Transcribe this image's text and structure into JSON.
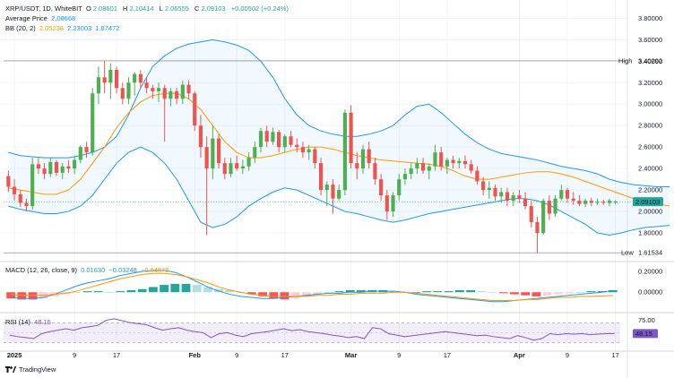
{
  "header": {
    "symbol_line": "XRP/USDT, 1D, WhiteBIT",
    "ohlc": {
      "o_label": "O",
      "o_value": "2.08601",
      "h_label": "H",
      "h_value": "2.10414",
      "l_label": "L",
      "l_value": "2.06555",
      "c_label": "C",
      "c_value": "2.09103",
      "change": "+0.00502 (+0.24%)"
    },
    "avg_price_label": "Average Price",
    "avg_price_value": "2.08668",
    "bb_label": "BB (20, 2)",
    "bb_basis": "2.05238",
    "bb_upper": "2.23003",
    "bb_lower": "1.87472",
    "macd_label": "MACD (12, 26, close, 9)",
    "macd_values": [
      "0.01630",
      "−0.03248",
      "−0.04878"
    ],
    "rsi_label": "RSI (14)",
    "rsi_value": "48.15"
  },
  "markers": {
    "high_label": "High",
    "high_value": "3.40292",
    "low_label": "Low",
    "low_value": "1.61534",
    "last_price": "2.09103",
    "rsi_last": "48.15"
  },
  "colors": {
    "up": "#26a69a",
    "up_fill": "#4caf50",
    "down": "#ef5350",
    "band": "#2196f3",
    "basis": "#ff9800",
    "macd_line": "#2196f3",
    "signal_line": "#ff9800",
    "rsi_line": "#7e57c2",
    "grid": "#f0f3fa"
  },
  "brand": {
    "name": "TradingView",
    "icon": "tradingview-logo-icon"
  },
  "chart_data": [
    {
      "type": "candlestick",
      "title": "XRP/USDT, 1D, WhiteBIT",
      "y_ticks": [
        "3.80000",
        "3.60000",
        "3.40000",
        "3.20000",
        "3.00000",
        "2.80000",
        "2.60000",
        "2.40000",
        "2.20000",
        "2.00000",
        "1.80000"
      ],
      "ylim": [
        1.55,
        3.92
      ],
      "x_ticks": [
        "2025",
        "9",
        "17",
        "Feb",
        "9",
        "17",
        "Mar",
        "9",
        "17",
        "Apr",
        "9",
        "17"
      ],
      "x_tick_index": [
        1,
        11,
        18,
        31,
        38,
        46,
        57,
        65,
        73,
        85,
        93,
        101
      ],
      "candles": [
        [
          2.33,
          2.38,
          2.18,
          2.23
        ],
        [
          2.23,
          2.3,
          2.1,
          2.16
        ],
        [
          2.16,
          2.2,
          2.04,
          2.08
        ],
        [
          2.08,
          2.12,
          2.0,
          2.05
        ],
        [
          2.05,
          2.5,
          2.02,
          2.44
        ],
        [
          2.44,
          2.5,
          2.35,
          2.4
        ],
        [
          2.4,
          2.45,
          2.3,
          2.35
        ],
        [
          2.35,
          2.5,
          2.32,
          2.46
        ],
        [
          2.46,
          2.48,
          2.33,
          2.36
        ],
        [
          2.36,
          2.45,
          2.3,
          2.42
        ],
        [
          2.42,
          2.48,
          2.36,
          2.4
        ],
        [
          2.4,
          2.52,
          2.35,
          2.48
        ],
        [
          2.48,
          2.62,
          2.45,
          2.6
        ],
        [
          2.6,
          2.65,
          2.5,
          2.55
        ],
        [
          2.55,
          3.15,
          2.52,
          3.1
        ],
        [
          3.1,
          3.35,
          3.0,
          3.25
        ],
        [
          3.25,
          3.4,
          3.1,
          3.2
        ],
        [
          3.2,
          3.38,
          3.05,
          3.32
        ],
        [
          3.32,
          3.35,
          3.1,
          3.15
        ],
        [
          3.15,
          3.2,
          3.0,
          3.05
        ],
        [
          3.05,
          3.25,
          3.0,
          3.2
        ],
        [
          3.2,
          3.3,
          3.08,
          3.28
        ],
        [
          3.28,
          3.32,
          3.15,
          3.2
        ],
        [
          3.2,
          3.25,
          3.1,
          3.15
        ],
        [
          3.15,
          3.18,
          3.05,
          3.12
        ],
        [
          3.12,
          3.2,
          3.02,
          3.15
        ],
        [
          3.15,
          3.18,
          2.65,
          3.05
        ],
        [
          3.05,
          3.15,
          2.98,
          3.12
        ],
        [
          3.12,
          3.15,
          3.0,
          3.05
        ],
        [
          3.05,
          3.22,
          3.0,
          3.18
        ],
        [
          3.18,
          3.22,
          3.05,
          3.1
        ],
        [
          3.1,
          3.12,
          2.75,
          2.8
        ],
        [
          2.8,
          2.9,
          2.5,
          2.6
        ],
        [
          2.6,
          2.7,
          1.78,
          2.4
        ],
        [
          2.4,
          2.8,
          2.3,
          2.68
        ],
        [
          2.68,
          2.72,
          2.4,
          2.45
        ],
        [
          2.45,
          2.5,
          2.3,
          2.35
        ],
        [
          2.35,
          2.5,
          2.32,
          2.45
        ],
        [
          2.45,
          2.52,
          2.38,
          2.4
        ],
        [
          2.4,
          2.48,
          2.35,
          2.42
        ],
        [
          2.42,
          2.55,
          2.38,
          2.5
        ],
        [
          2.5,
          2.65,
          2.45,
          2.6
        ],
        [
          2.6,
          2.78,
          2.55,
          2.75
        ],
        [
          2.75,
          2.8,
          2.6,
          2.65
        ],
        [
          2.65,
          2.78,
          2.62,
          2.74
        ],
        [
          2.74,
          2.76,
          2.55,
          2.6
        ],
        [
          2.6,
          2.72,
          2.55,
          2.7
        ],
        [
          2.7,
          2.75,
          2.6,
          2.62
        ],
        [
          2.62,
          2.68,
          2.55,
          2.6
        ],
        [
          2.6,
          2.65,
          2.5,
          2.55
        ],
        [
          2.55,
          2.62,
          2.48,
          2.58
        ],
        [
          2.58,
          2.6,
          2.4,
          2.45
        ],
        [
          2.45,
          2.5,
          2.15,
          2.2
        ],
        [
          2.2,
          2.28,
          2.05,
          2.25
        ],
        [
          2.25,
          2.3,
          1.98,
          2.12
        ],
        [
          2.12,
          2.25,
          2.1,
          2.2
        ],
        [
          2.2,
          2.95,
          2.15,
          2.92
        ],
        [
          2.92,
          2.99,
          2.4,
          2.45
        ],
        [
          2.45,
          2.55,
          2.3,
          2.4
        ],
        [
          2.4,
          2.62,
          2.35,
          2.58
        ],
        [
          2.58,
          2.65,
          2.4,
          2.45
        ],
        [
          2.45,
          2.5,
          2.25,
          2.3
        ],
        [
          2.3,
          2.35,
          2.1,
          2.15
        ],
        [
          2.15,
          2.2,
          1.92,
          2.0
        ],
        [
          2.0,
          2.18,
          1.95,
          2.15
        ],
        [
          2.15,
          2.35,
          2.1,
          2.3
        ],
        [
          2.3,
          2.4,
          2.25,
          2.35
        ],
        [
          2.35,
          2.45,
          2.3,
          2.4
        ],
        [
          2.4,
          2.5,
          2.35,
          2.45
        ],
        [
          2.45,
          2.5,
          2.35,
          2.38
        ],
        [
          2.38,
          2.45,
          2.3,
          2.42
        ],
        [
          2.42,
          2.62,
          2.38,
          2.55
        ],
        [
          2.55,
          2.6,
          2.38,
          2.42
        ],
        [
          2.42,
          2.5,
          2.35,
          2.48
        ],
        [
          2.48,
          2.52,
          2.4,
          2.45
        ],
        [
          2.45,
          2.5,
          2.4,
          2.47
        ],
        [
          2.47,
          2.52,
          2.4,
          2.44
        ],
        [
          2.44,
          2.48,
          2.35,
          2.38
        ],
        [
          2.38,
          2.42,
          2.25,
          2.28
        ],
        [
          2.28,
          2.32,
          2.15,
          2.2
        ],
        [
          2.2,
          2.28,
          2.12,
          2.22
        ],
        [
          2.22,
          2.25,
          2.1,
          2.14
        ],
        [
          2.14,
          2.22,
          2.08,
          2.18
        ],
        [
          2.18,
          2.22,
          2.05,
          2.1
        ],
        [
          2.1,
          2.18,
          2.05,
          2.15
        ],
        [
          2.15,
          2.2,
          2.08,
          2.12
        ],
        [
          2.12,
          2.18,
          2.02,
          2.05
        ],
        [
          2.05,
          2.1,
          1.85,
          1.9
        ],
        [
          1.9,
          1.95,
          1.61,
          1.8
        ],
        [
          1.8,
          2.12,
          1.78,
          2.1
        ],
        [
          2.1,
          2.15,
          1.92,
          1.98
        ],
        [
          1.98,
          2.15,
          1.95,
          2.12
        ],
        [
          2.12,
          2.25,
          2.1,
          2.2
        ],
        [
          2.2,
          2.22,
          2.08,
          2.12
        ],
        [
          2.12,
          2.18,
          2.06,
          2.1
        ],
        [
          2.1,
          2.15,
          2.05,
          2.07
        ],
        [
          2.07,
          2.12,
          2.04,
          2.1
        ],
        [
          2.1,
          2.13,
          2.05,
          2.08
        ],
        [
          2.08,
          2.12,
          2.06,
          2.09
        ],
        [
          2.09,
          2.11,
          2.06,
          2.08
        ],
        [
          2.08,
          2.12,
          2.05,
          2.1
        ],
        [
          2.086,
          2.104,
          2.066,
          2.091
        ]
      ],
      "series_upper_band": [
        2.55,
        2.52,
        2.51,
        2.5,
        2.5,
        2.5,
        2.52,
        2.55,
        2.6,
        2.7,
        2.9,
        3.15,
        3.35,
        3.45,
        3.52,
        3.56,
        3.58,
        3.6,
        3.58,
        3.55,
        3.5,
        3.4,
        3.25,
        3.05,
        2.9,
        2.8,
        2.75,
        2.72,
        2.7,
        2.7,
        2.72,
        2.75,
        2.8,
        2.9,
        2.98,
        3.0,
        2.92,
        2.82,
        2.72,
        2.64,
        2.58,
        2.54,
        2.52,
        2.5,
        2.48,
        2.45,
        2.42,
        2.4,
        2.38,
        2.35,
        2.3,
        2.27,
        2.25,
        2.24,
        2.23,
        2.23
      ],
      "series_basis": [
        2.22,
        2.2,
        2.18,
        2.16,
        2.16,
        2.2,
        2.3,
        2.45,
        2.6,
        2.78,
        2.92,
        3.02,
        3.08,
        3.1,
        3.1,
        3.05,
        2.95,
        2.8,
        2.65,
        2.55,
        2.5,
        2.5,
        2.52,
        2.55,
        2.58,
        2.6,
        2.6,
        2.58,
        2.55,
        2.52,
        2.5,
        2.48,
        2.47,
        2.46,
        2.45,
        2.44,
        2.42,
        2.38,
        2.33,
        2.3,
        2.3,
        2.32,
        2.34,
        2.36,
        2.37,
        2.37,
        2.35,
        2.32,
        2.28,
        2.24,
        2.2,
        2.16,
        2.12,
        2.09,
        2.07,
        2.05
      ],
      "series_lower_band": [
        2.05,
        2.02,
        2.0,
        1.98,
        1.98,
        2.0,
        2.05,
        2.15,
        2.3,
        2.45,
        2.55,
        2.6,
        2.55,
        2.45,
        2.3,
        2.1,
        1.9,
        1.85,
        1.88,
        1.95,
        2.05,
        2.12,
        2.18,
        2.22,
        2.2,
        2.15,
        2.1,
        2.05,
        2.0,
        1.98,
        1.95,
        1.92,
        1.9,
        1.92,
        1.95,
        1.98,
        2.0,
        2.02,
        2.04,
        2.06,
        2.08,
        2.1,
        2.12,
        2.12,
        2.1,
        2.06,
        2.0,
        1.94,
        1.88,
        1.8,
        1.78,
        1.8,
        1.83,
        1.85,
        1.86,
        1.87
      ]
    },
    {
      "type": "histogram+line",
      "title": "MACD (12, 26, close, 9)",
      "y_ticks": [
        "0.20000",
        "0.00000"
      ],
      "ylim": [
        -0.17,
        0.26
      ],
      "histogram": [
        -0.06,
        -0.07,
        -0.07,
        -0.06,
        -0.04,
        -0.02,
        0.0,
        0.01,
        0.01,
        0.0,
        0.01,
        0.02,
        0.03,
        0.05,
        0.07,
        0.08,
        0.08,
        0.07,
        0.05,
        0.03,
        0.02,
        0.0,
        -0.02,
        -0.04,
        -0.06,
        -0.07,
        -0.06,
        -0.04,
        -0.02,
        0.0,
        0.01,
        0.02,
        0.02,
        0.02,
        0.02,
        0.01,
        0.0,
        0.0,
        0.01,
        0.01,
        0.01,
        0.02,
        0.02,
        0.01,
        0.0,
        -0.01,
        -0.02,
        -0.03,
        -0.04,
        -0.03,
        -0.02,
        -0.01,
        0.0,
        0.01,
        0.01,
        0.02
      ],
      "macd_line": [
        -0.05,
        -0.06,
        -0.06,
        -0.05,
        -0.02,
        0.02,
        0.06,
        0.09,
        0.11,
        0.13,
        0.16,
        0.18,
        0.2,
        0.21,
        0.21,
        0.19,
        0.15,
        0.1,
        0.05,
        0.01,
        -0.02,
        -0.04,
        -0.05,
        -0.06,
        -0.06,
        -0.05,
        -0.04,
        -0.03,
        -0.02,
        -0.01,
        -0.01,
        0.0,
        0.0,
        0.01,
        0.01,
        0.01,
        0.0,
        -0.02,
        -0.03,
        -0.04,
        -0.05,
        -0.06,
        -0.07,
        -0.08,
        -0.09,
        -0.09,
        -0.08,
        -0.07,
        -0.06,
        -0.05,
        -0.04,
        -0.03,
        -0.02,
        -0.01,
        0.0,
        0.016
      ],
      "signal_line": [
        -0.02,
        -0.03,
        -0.03,
        -0.03,
        -0.02,
        -0.01,
        0.01,
        0.04,
        0.07,
        0.1,
        0.13,
        0.15,
        0.17,
        0.18,
        0.18,
        0.17,
        0.15,
        0.12,
        0.09,
        0.05,
        0.02,
        0.0,
        -0.02,
        -0.03,
        -0.04,
        -0.04,
        -0.04,
        -0.04,
        -0.03,
        -0.03,
        -0.02,
        -0.02,
        -0.01,
        -0.01,
        -0.01,
        0.0,
        0.0,
        -0.01,
        -0.02,
        -0.03,
        -0.04,
        -0.05,
        -0.06,
        -0.07,
        -0.08,
        -0.08,
        -0.08,
        -0.07,
        -0.07,
        -0.06,
        -0.05,
        -0.05,
        -0.04,
        -0.04,
        -0.035,
        -0.032
      ]
    },
    {
      "type": "line",
      "title": "RSI (14)",
      "y_ticks": [
        "75.00"
      ],
      "ylim": [
        20,
        85
      ],
      "band": [
        30,
        70
      ],
      "rsi": [
        45,
        42,
        40,
        38,
        48,
        52,
        55,
        58,
        55,
        60,
        62,
        65,
        75,
        78,
        74,
        70,
        68,
        66,
        60,
        55,
        58,
        60,
        55,
        52,
        50,
        40,
        48,
        50,
        45,
        42,
        48,
        50,
        52,
        55,
        58,
        54,
        56,
        52,
        50,
        48,
        45,
        43,
        40,
        42,
        38,
        60,
        58,
        48,
        45,
        42,
        44,
        46,
        48,
        50,
        52,
        50,
        48,
        46,
        44,
        45,
        42,
        40,
        38,
        44,
        40,
        35,
        38,
        48,
        46,
        48,
        47,
        48,
        46,
        47,
        48,
        48.15
      ]
    }
  ]
}
